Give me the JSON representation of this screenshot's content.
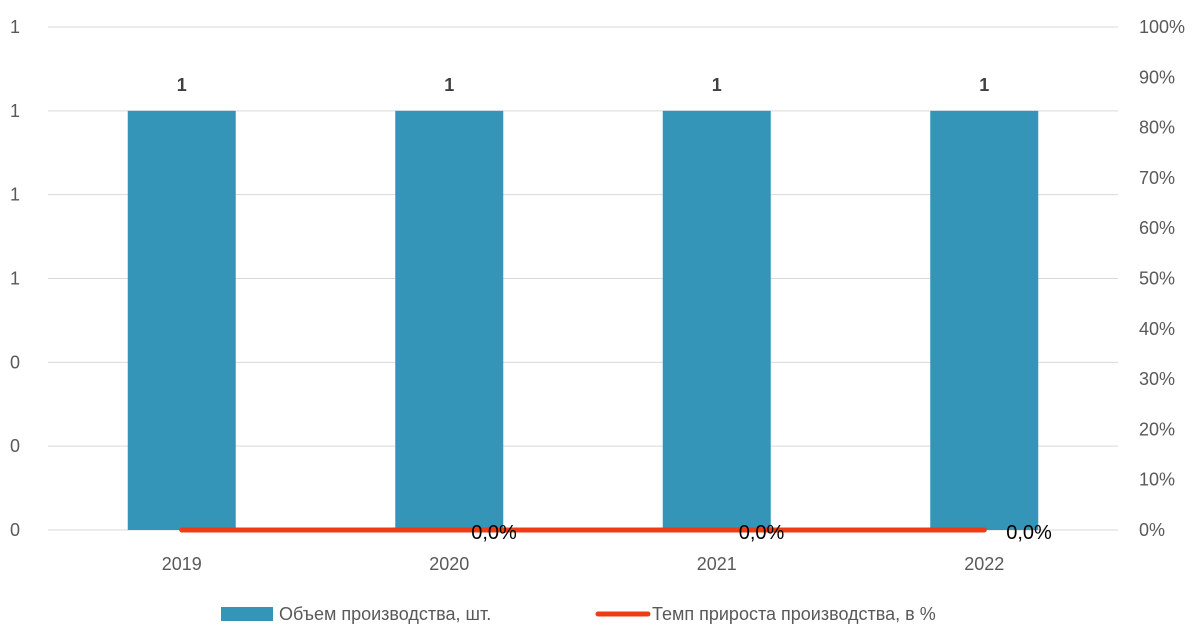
{
  "chart_data": {
    "type": "bar",
    "categories": [
      "2019",
      "2020",
      "2021",
      "2022"
    ],
    "left_axis": {
      "tick_labels": [
        "1",
        "1",
        "1",
        "1",
        "0",
        "0",
        "0"
      ],
      "ylim": [
        0,
        1.2
      ]
    },
    "right_axis": {
      "tick_labels": [
        "100%",
        "90%",
        "80%",
        "70%",
        "60%",
        "50%",
        "40%",
        "30%",
        "20%",
        "10%",
        "0%"
      ],
      "ylim": [
        0,
        100
      ]
    },
    "series": [
      {
        "name": "Объем производства, шт.",
        "type": "bar",
        "axis": "left",
        "values": [
          1,
          1,
          1,
          1
        ],
        "labels": [
          "1",
          "1",
          "1",
          "1"
        ],
        "color": "#3595b9"
      },
      {
        "name": "Темп прироста производства, в %",
        "type": "line",
        "axis": "right",
        "values": [
          0,
          0,
          0,
          0
        ],
        "labels": [
          "",
          "0,0%",
          "0,0%",
          "0,0%"
        ],
        "color": "#f03c14"
      }
    ],
    "grid": true,
    "legend_position": "bottom"
  }
}
